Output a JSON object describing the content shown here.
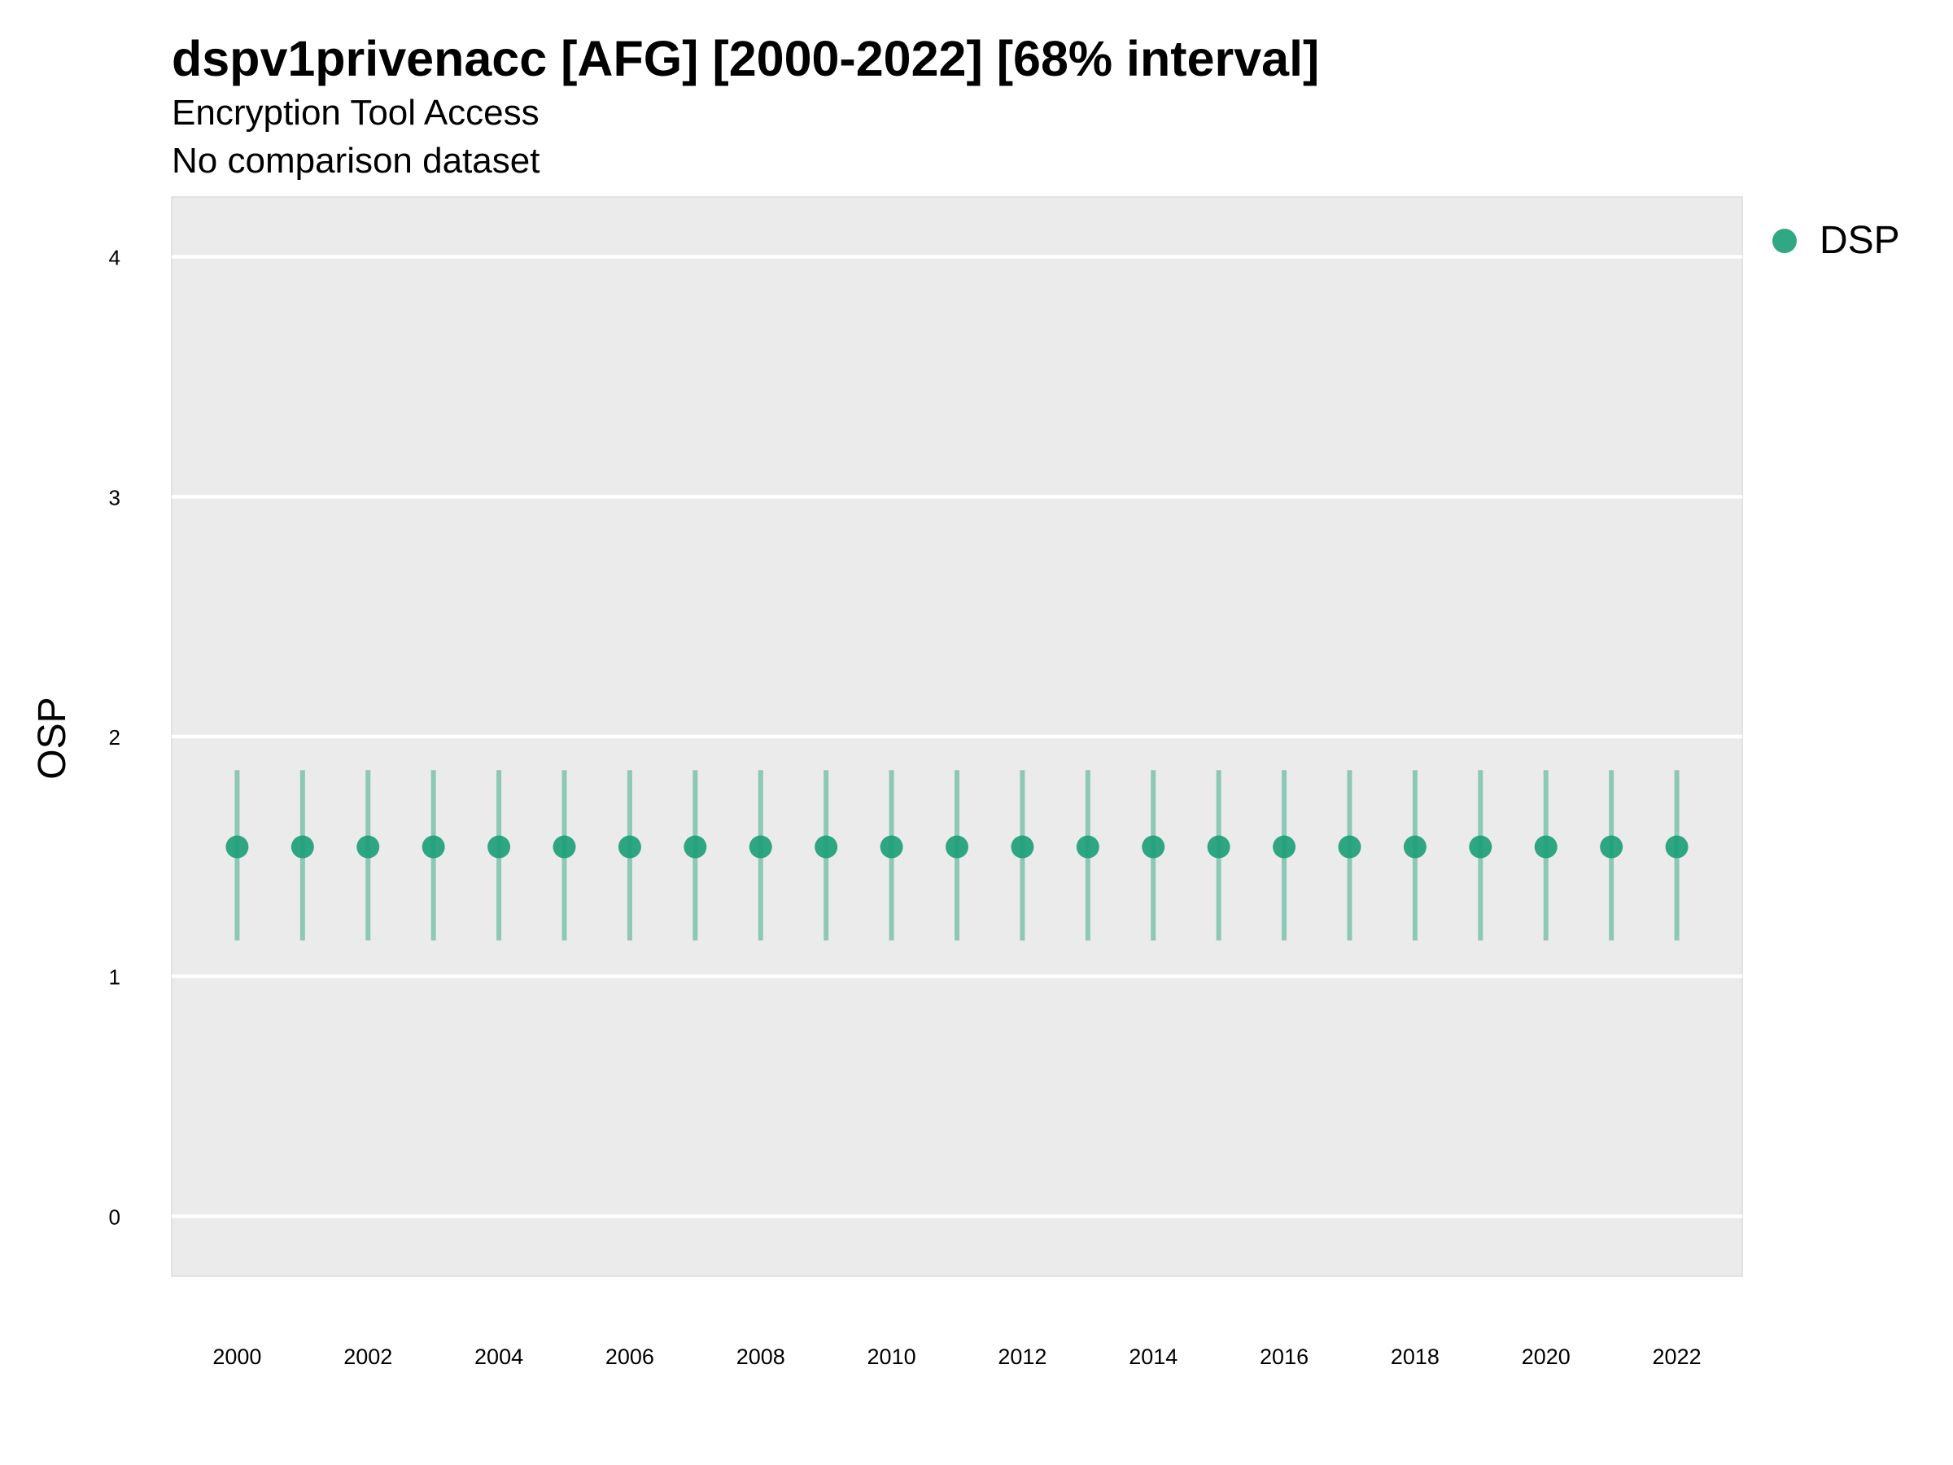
{
  "chart_data": {
    "type": "scatter",
    "title": "dspv1privenacc [AFG] [2000-2022] [68% interval]",
    "subtitle": "Encryption Tool Access",
    "caption": "No comparison dataset",
    "xlabel": "",
    "ylabel": "OSP",
    "x": [
      2000,
      2001,
      2002,
      2003,
      2004,
      2005,
      2006,
      2007,
      2008,
      2009,
      2010,
      2011,
      2012,
      2013,
      2014,
      2015,
      2016,
      2017,
      2018,
      2019,
      2020,
      2021,
      2022
    ],
    "x_ticks": [
      "2000",
      "2002",
      "2004",
      "2006",
      "2008",
      "2010",
      "2012",
      "2014",
      "2016",
      "2018",
      "2020",
      "2022"
    ],
    "y_ticks": [
      "0",
      "1",
      "2",
      "3",
      "4"
    ],
    "xlim": [
      1999,
      2023
    ],
    "ylim": [
      -0.25,
      4.25
    ],
    "grid": true,
    "legend_position": "right",
    "series": [
      {
        "name": "DSP",
        "color": "#1b9e77",
        "y": [
          1.54,
          1.54,
          1.54,
          1.54,
          1.54,
          1.54,
          1.54,
          1.54,
          1.54,
          1.54,
          1.54,
          1.54,
          1.54,
          1.54,
          1.54,
          1.54,
          1.54,
          1.54,
          1.54,
          1.54,
          1.54,
          1.54,
          1.54
        ],
        "lower": [
          1.15,
          1.15,
          1.15,
          1.15,
          1.15,
          1.15,
          1.15,
          1.15,
          1.15,
          1.15,
          1.15,
          1.15,
          1.15,
          1.15,
          1.15,
          1.15,
          1.15,
          1.15,
          1.15,
          1.15,
          1.15,
          1.15,
          1.15
        ],
        "upper": [
          1.86,
          1.86,
          1.86,
          1.86,
          1.86,
          1.86,
          1.86,
          1.86,
          1.86,
          1.86,
          1.86,
          1.86,
          1.86,
          1.86,
          1.86,
          1.86,
          1.86,
          1.86,
          1.86,
          1.86,
          1.86,
          1.86,
          1.86
        ]
      }
    ]
  }
}
